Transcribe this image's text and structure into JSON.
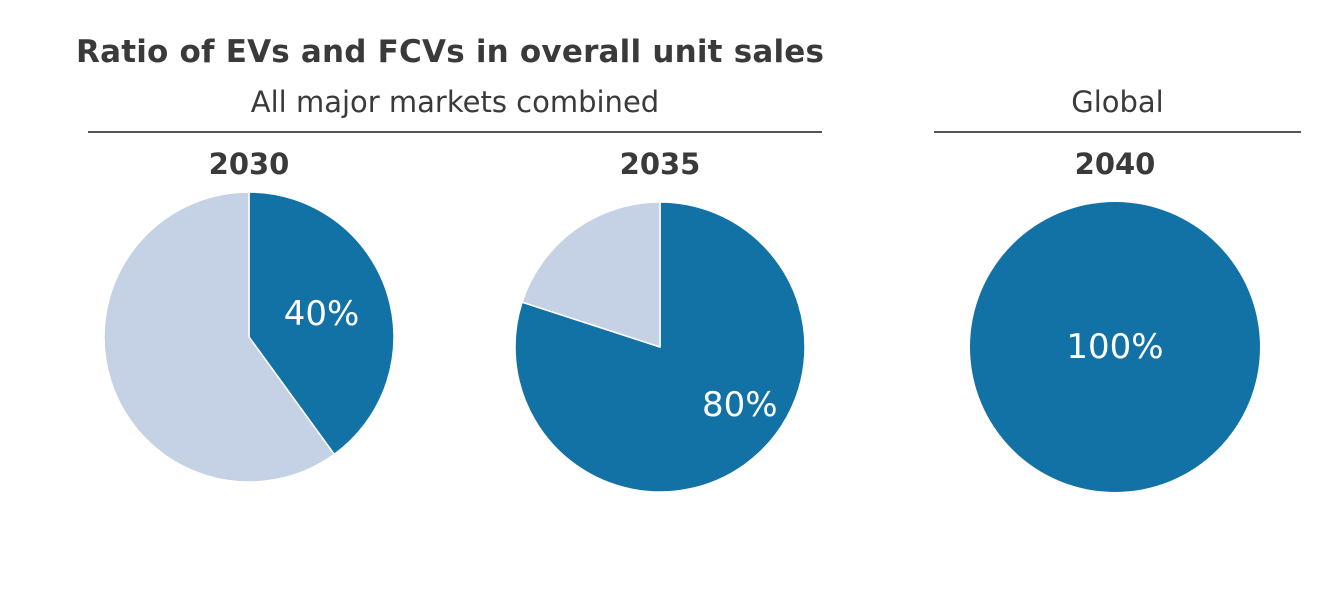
{
  "title": "Ratio of EVs and FCVs in overall unit sales",
  "groups": [
    {
      "label": "All major markets combined"
    },
    {
      "label": "Global"
    }
  ],
  "colors": {
    "ev_fcv": "#1272a6",
    "other": "#c5d1e4",
    "rule": "#555555"
  },
  "chart_data": [
    {
      "type": "pie",
      "title": "2030",
      "group": "All major markets combined",
      "slices": [
        {
          "name": "",
          "value": 40,
          "label": "40%",
          "color": "#1272a6"
        },
        {
          "name": "",
          "value": 60,
          "label": "",
          "color": "#c5d1e4"
        }
      ]
    },
    {
      "type": "pie",
      "title": "2035",
      "group": "All major markets combined",
      "slices": [
        {
          "name": "",
          "value": 80,
          "label": "80%",
          "color": "#1272a6"
        },
        {
          "name": "",
          "value": 20,
          "label": "",
          "color": "#c5d1e4"
        }
      ]
    },
    {
      "type": "pie",
      "title": "2040",
      "group": "Global",
      "slices": [
        {
          "name": "",
          "value": 100,
          "label": "100%",
          "color": "#1272a6"
        }
      ]
    }
  ]
}
